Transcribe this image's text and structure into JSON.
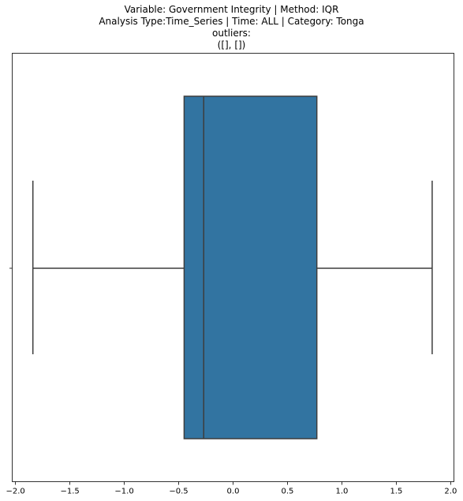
{
  "title_lines": [
    "Variable: Government Integrity | Method: IQR",
    "Analysis Type:Time_Series | Time: ALL | Category: Tonga",
    "outliers:",
    "([], [])"
  ],
  "chart_data": {
    "type": "box",
    "orientation": "horizontal",
    "title": "Variable: Government Integrity | Method: IQR\nAnalysis Type:Time_Series | Time: ALL | Category: Tonga\noutliers:\n([], [])",
    "xlabel": "",
    "ylabel": "",
    "xlim": [
      -2.03,
      2.03
    ],
    "xticks": [
      -2.0,
      -1.5,
      -1.0,
      -0.5,
      0.0,
      0.5,
      1.0,
      1.5,
      2.0
    ],
    "xtick_labels": [
      "−2.0",
      "−1.5",
      "−1.0",
      "−0.5",
      "0.0",
      "0.5",
      "1.0",
      "1.5",
      "2.0"
    ],
    "boxes": [
      {
        "whisker_low": -1.84,
        "q1": -0.45,
        "median": -0.27,
        "q3": 0.77,
        "whisker_high": 1.83,
        "outliers": []
      }
    ],
    "box_color": "#3274a1",
    "line_color": "#3d3d3d",
    "grid": false
  }
}
